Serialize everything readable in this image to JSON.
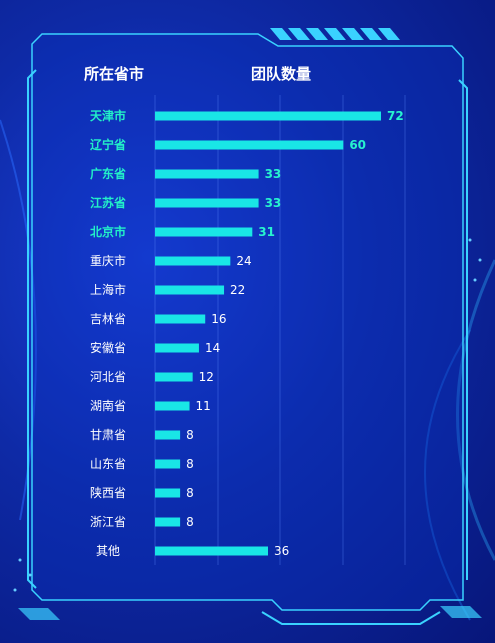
{
  "header": {
    "province_label": "所在省市",
    "count_label": "团队数量"
  },
  "colors": {
    "bar": "#19e6e6",
    "top_label": "#22f0c8",
    "normal_label": "#ffffff",
    "value_top": "#27f3cf",
    "value_normal": "#ffffff"
  },
  "chart_data": {
    "type": "bar",
    "orientation": "horizontal",
    "categories": [
      "天津市",
      "辽宁省",
      "广东省",
      "江苏省",
      "北京市",
      "重庆市",
      "上海市",
      "吉林省",
      "安徽省",
      "河北省",
      "湖南省",
      "甘肃省",
      "山东省",
      "陕西省",
      "浙江省",
      "其他"
    ],
    "values": [
      72,
      60,
      33,
      33,
      31,
      24,
      22,
      16,
      14,
      12,
      11,
      8,
      8,
      8,
      8,
      36
    ],
    "highlighted_top": 5,
    "xlim": [
      0,
      72
    ]
  }
}
